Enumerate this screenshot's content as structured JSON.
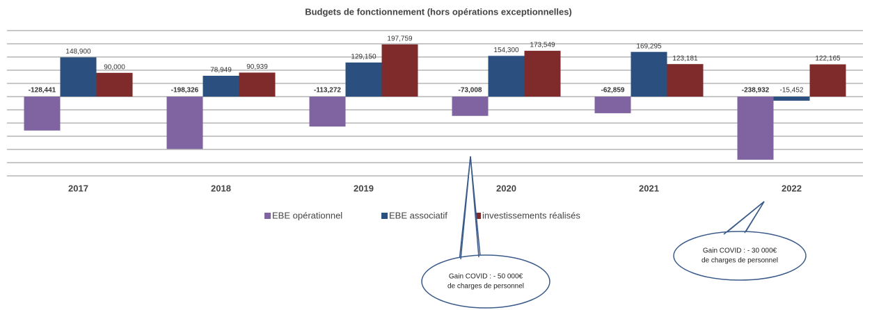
{
  "chart_data": {
    "type": "bar",
    "title": "Budgets de fonctionnement (hors opérations exceptionnelles)",
    "categories": [
      "2017",
      "2018",
      "2019",
      "2020",
      "2021",
      "2022"
    ],
    "series": [
      {
        "name": "EBE opérationnel",
        "color": "#8064a2",
        "values": [
          -128441,
          -198326,
          -113272,
          -73008,
          -62859,
          -238932
        ],
        "value_labels": [
          "-128,441",
          "-198,326",
          "-113,272",
          "-73,008",
          "-62,859",
          "-238,932"
        ]
      },
      {
        "name": "EBE associatif",
        "color": "#2b4f7e",
        "values": [
          148900,
          78949,
          129150,
          154300,
          169295,
          -15452
        ],
        "value_labels": [
          "148,900",
          "78,949",
          "129,150",
          "154,300",
          "169,295",
          "-15,452"
        ]
      },
      {
        "name": "investissements réalisés",
        "color": "#7f2b2b",
        "values": [
          90000,
          90939,
          197759,
          173549,
          123181,
          122165
        ],
        "value_labels": [
          "90,000",
          "90,939",
          "197,759",
          "173,549",
          "123,181",
          "122,165"
        ]
      }
    ],
    "ylim": [
      -300000,
      250000
    ],
    "yticks": [
      -300000,
      -250000,
      -200000,
      -150000,
      -100000,
      -50000,
      0,
      50000,
      100000,
      150000,
      200000,
      250000
    ],
    "grid": true,
    "annotations": [
      {
        "lines": [
          "Gain COVID : - 50 000€",
          "de charges de personnel"
        ]
      },
      {
        "lines": [
          "Gain COVID : - 30 000€",
          "de charges de personnel"
        ]
      }
    ]
  }
}
